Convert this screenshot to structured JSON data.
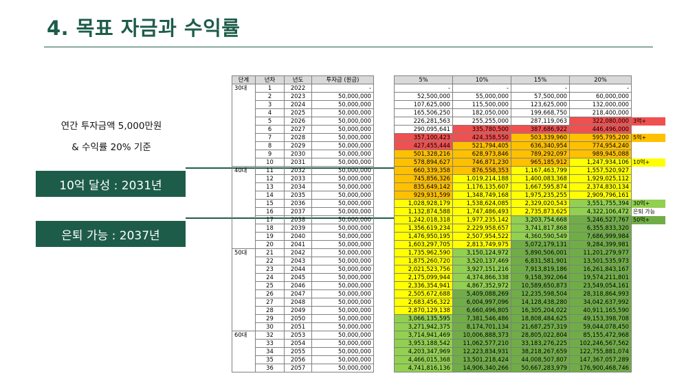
{
  "title": "4. 목표 자금과 수익률",
  "description": {
    "line1": "연간 투자금액 5,000만원",
    "line2": "& 수익률 20% 기준"
  },
  "badges": [
    {
      "text": "10억 달성 : 2031년"
    },
    {
      "text": "은퇴 가능 : 2037년"
    }
  ],
  "table": {
    "left_headers": [
      "단계",
      "년차",
      "년도",
      "투자금 (원금)"
    ],
    "right_headers": [
      "5%",
      "10%",
      "15%",
      "20%"
    ],
    "rows": [
      {
        "stage": "30대",
        "n": "1",
        "year": "2022",
        "principal": "-",
        "v5": "-",
        "v10": "-",
        "v15": "-",
        "v20": "-",
        "note": ""
      },
      {
        "stage": "",
        "n": "2",
        "year": "2023",
        "principal": "50,000,000",
        "v5": "52,500,000",
        "v10": "55,000,000",
        "v15": "57,500,000",
        "v20": "60,000,000",
        "note": ""
      },
      {
        "stage": "",
        "n": "3",
        "year": "2024",
        "principal": "50,000,000",
        "v5": "107,625,000",
        "v10": "115,500,000",
        "v15": "123,625,000",
        "v20": "132,000,000",
        "note": ""
      },
      {
        "stage": "",
        "n": "4",
        "year": "2025",
        "principal": "50,000,000",
        "v5": "165,506,250",
        "v10": "182,050,000",
        "v15": "199,668,750",
        "v20": "218,400,000",
        "note": ""
      },
      {
        "stage": "",
        "n": "5",
        "year": "2026",
        "principal": "50,000,000",
        "v5": "226,281,563",
        "v10": "255,255,000",
        "v15": "287,119,063",
        "v20": "322,080,000",
        "note": "3억+"
      },
      {
        "stage": "",
        "n": "6",
        "year": "2027",
        "principal": "50,000,000",
        "v5": "290,095,641",
        "v10": "335,780,500",
        "v15": "387,686,922",
        "v20": "446,496,000",
        "note": ""
      },
      {
        "stage": "",
        "n": "7",
        "year": "2028",
        "principal": "50,000,000",
        "v5": "357,100,423",
        "v10": "424,358,550",
        "v15": "503,339,960",
        "v20": "595,795,200",
        "note": "5억+"
      },
      {
        "stage": "",
        "n": "8",
        "year": "2029",
        "principal": "50,000,000",
        "v5": "427,455,444",
        "v10": "521,794,405",
        "v15": "636,340,954",
        "v20": "774,954,240",
        "note": ""
      },
      {
        "stage": "",
        "n": "9",
        "year": "2030",
        "principal": "50,000,000",
        "v5": "501,328,216",
        "v10": "628,973,846",
        "v15": "789,292,097",
        "v20": "989,945,088",
        "note": ""
      },
      {
        "stage": "",
        "n": "10",
        "year": "2031",
        "principal": "50,000,000",
        "v5": "578,894,627",
        "v10": "746,871,230",
        "v15": "965,185,912",
        "v20": "1,247,934,106",
        "note": "10억+"
      },
      {
        "stage": "40대",
        "n": "11",
        "year": "2032",
        "principal": "50,000,000",
        "v5": "660,339,358",
        "v10": "876,558,353",
        "v15": "1,167,463,799",
        "v20": "1,557,520,927",
        "note": ""
      },
      {
        "stage": "",
        "n": "12",
        "year": "2033",
        "principal": "50,000,000",
        "v5": "745,856,326",
        "v10": "1,019,214,188",
        "v15": "1,400,083,368",
        "v20": "1,929,025,112",
        "note": ""
      },
      {
        "stage": "",
        "n": "13",
        "year": "2034",
        "principal": "50,000,000",
        "v5": "835,649,142",
        "v10": "1,176,135,607",
        "v15": "1,667,595,874",
        "v20": "2,374,830,134",
        "note": ""
      },
      {
        "stage": "",
        "n": "14",
        "year": "2035",
        "principal": "50,000,000",
        "v5": "929,931,599",
        "v10": "1,348,749,168",
        "v15": "1,975,235,255",
        "v20": "2,909,796,161",
        "note": ""
      },
      {
        "stage": "",
        "n": "15",
        "year": "2036",
        "principal": "50,000,000",
        "v5": "1,028,928,179",
        "v10": "1,538,624,085",
        "v15": "2,329,020,543",
        "v20": "3,551,755,394",
        "note": "30억+"
      },
      {
        "stage": "",
        "n": "16",
        "year": "2037",
        "principal": "50,000,000",
        "v5": "1,132,874,588",
        "v10": "1,747,486,493",
        "v15": "2,735,873,625",
        "v20": "4,322,106,472",
        "note": "은퇴 가능"
      },
      {
        "stage": "",
        "n": "17",
        "year": "2038",
        "principal": "50,000,000",
        "v5": "1,242,018,318",
        "v10": "1,977,235,142",
        "v15": "3,203,754,668",
        "v20": "5,246,527,767",
        "note": "50억+"
      },
      {
        "stage": "",
        "n": "18",
        "year": "2039",
        "principal": "50,000,000",
        "v5": "1,356,619,234",
        "v10": "2,229,958,657",
        "v15": "3,741,817,868",
        "v20": "6,355,833,320",
        "note": ""
      },
      {
        "stage": "",
        "n": "19",
        "year": "2040",
        "principal": "50,000,000",
        "v5": "1,476,950,195",
        "v10": "2,507,954,522",
        "v15": "4,360,590,549",
        "v20": "7,686,999,984",
        "note": ""
      },
      {
        "stage": "",
        "n": "20",
        "year": "2041",
        "principal": "50,000,000",
        "v5": "1,603,297,705",
        "v10": "2,813,749,975",
        "v15": "5,072,179,131",
        "v20": "9,284,399,981",
        "note": ""
      },
      {
        "stage": "50대",
        "n": "21",
        "year": "2042",
        "principal": "50,000,000",
        "v5": "1,735,962,590",
        "v10": "3,150,124,972",
        "v15": "5,890,506,001",
        "v20": "11,201,279,977",
        "note": ""
      },
      {
        "stage": "",
        "n": "22",
        "year": "2043",
        "principal": "50,000,000",
        "v5": "1,875,260,720",
        "v10": "3,520,137,469",
        "v15": "6,831,581,901",
        "v20": "13,501,535,973",
        "note": ""
      },
      {
        "stage": "",
        "n": "23",
        "year": "2044",
        "principal": "50,000,000",
        "v5": "2,021,523,756",
        "v10": "3,927,151,216",
        "v15": "7,913,819,186",
        "v20": "16,261,843,167",
        "note": ""
      },
      {
        "stage": "",
        "n": "24",
        "year": "2045",
        "principal": "50,000,000",
        "v5": "2,175,099,944",
        "v10": "4,374,866,338",
        "v15": "9,158,392,064",
        "v20": "19,574,211,801",
        "note": ""
      },
      {
        "stage": "",
        "n": "25",
        "year": "2046",
        "principal": "50,000,000",
        "v5": "2,336,354,941",
        "v10": "4,867,352,972",
        "v15": "10,589,650,873",
        "v20": "23,549,054,161",
        "note": ""
      },
      {
        "stage": "",
        "n": "26",
        "year": "2047",
        "principal": "50,000,000",
        "v5": "2,505,672,688",
        "v10": "5,409,088,269",
        "v15": "12,235,598,504",
        "v20": "28,318,864,993",
        "note": ""
      },
      {
        "stage": "",
        "n": "27",
        "year": "2048",
        "principal": "50,000,000",
        "v5": "2,683,456,322",
        "v10": "6,004,997,096",
        "v15": "14,128,438,280",
        "v20": "34,042,637,992",
        "note": ""
      },
      {
        "stage": "",
        "n": "28",
        "year": "2049",
        "principal": "50,000,000",
        "v5": "2,870,129,138",
        "v10": "6,660,496,805",
        "v15": "16,305,204,022",
        "v20": "40,911,165,590",
        "note": ""
      },
      {
        "stage": "",
        "n": "29",
        "year": "2050",
        "principal": "50,000,000",
        "v5": "3,066,135,595",
        "v10": "7,381,546,486",
        "v15": "18,808,484,625",
        "v20": "49,153,398,708",
        "note": ""
      },
      {
        "stage": "",
        "n": "30",
        "year": "2051",
        "principal": "50,000,000",
        "v5": "3,271,942,375",
        "v10": "8,174,701,134",
        "v15": "21,687,257,319",
        "v20": "59,044,078,450",
        "note": ""
      },
      {
        "stage": "60대",
        "n": "32",
        "year": "2053",
        "principal": "50,000,000",
        "v5": "3,714,941,469",
        "v10": "10,006,888,373",
        "v15": "28,805,022,804",
        "v20": "85,155,472,968",
        "note": ""
      },
      {
        "stage": "",
        "n": "33",
        "year": "2054",
        "principal": "50,000,000",
        "v5": "3,953,188,542",
        "v10": "11,062,577,210",
        "v15": "33,183,276,225",
        "v20": "102,246,567,562",
        "note": ""
      },
      {
        "stage": "",
        "n": "34",
        "year": "2055",
        "principal": "50,000,000",
        "v5": "4,203,347,969",
        "v10": "12,223,834,931",
        "v15": "38,218,267,659",
        "v20": "122,755,881,074",
        "note": ""
      },
      {
        "stage": "",
        "n": "35",
        "year": "2056",
        "principal": "50,000,000",
        "v5": "4,466,015,368",
        "v10": "13,501,218,424",
        "v15": "44,008,507,807",
        "v20": "147,367,057,289",
        "note": ""
      },
      {
        "stage": "",
        "n": "36",
        "year": "2057",
        "principal": "50,000,000",
        "v5": "4,741,816,136",
        "v10": "14,906,340,266",
        "v15": "50,667,283,979",
        "v20": "176,900,468,746",
        "note": ""
      }
    ]
  },
  "colors": {
    "brand_green": "#1e5c4a",
    "red": "#f05050",
    "orange": "#ffc000",
    "yellow": "#ffff00",
    "light_green": "#92d050",
    "green": "#70ad47",
    "header_gray": "#d9d9d9"
  }
}
